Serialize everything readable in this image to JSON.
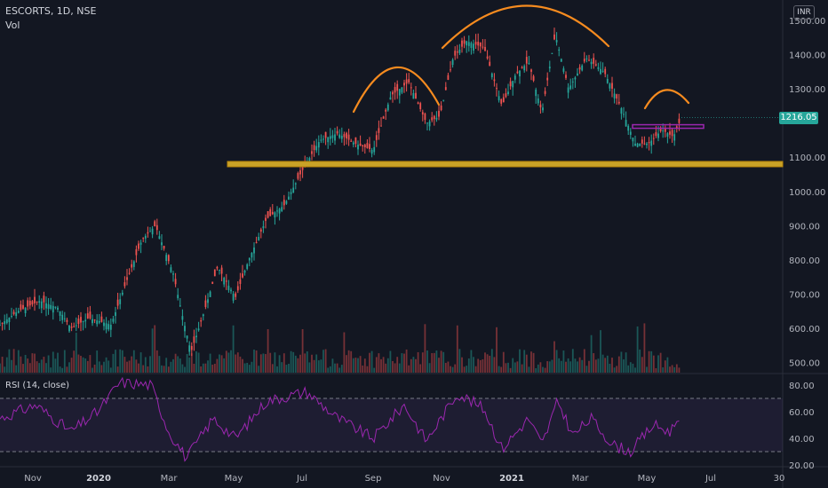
{
  "header": {
    "symbol": "ESCORTS, 1D, NSE",
    "volume_label": "Vol",
    "currency": "INR",
    "last_price": "1216.05",
    "rsi_label": "RSI (14, close)"
  },
  "colors": {
    "background": "#131722",
    "up": "#26a69a",
    "down": "#ef5350",
    "support": "#c9a227",
    "pattern": "#f68b1f",
    "neckline": "#9c27b0",
    "rsi": "#9c27b0",
    "grid": "#1e222d",
    "text": "#b2b5be"
  },
  "chart_data": [
    {
      "type": "candlestick",
      "title": "ESCORTS, 1D, NSE",
      "x_ticks": [
        "Nov",
        "2020",
        "Mar",
        "May",
        "Jul",
        "Sep",
        "Nov",
        "2021",
        "Mar",
        "May",
        "Jul",
        "30"
      ],
      "y_ticks": [
        "500.00",
        "600.00",
        "700.00",
        "800.00",
        "900.00",
        "1000.00",
        "1100.00",
        "1200.00",
        "1300.00",
        "1400.00",
        "1500.00"
      ],
      "ylim": [
        470,
        1560
      ],
      "close_path": [
        {
          "t": 0,
          "v": 610
        },
        {
          "t": 20,
          "v": 650
        },
        {
          "t": 45,
          "v": 680
        },
        {
          "t": 65,
          "v": 660
        },
        {
          "t": 80,
          "v": 600
        },
        {
          "t": 100,
          "v": 630
        },
        {
          "t": 125,
          "v": 610
        },
        {
          "t": 140,
          "v": 720
        },
        {
          "t": 160,
          "v": 860
        },
        {
          "t": 175,
          "v": 900
        },
        {
          "t": 195,
          "v": 760
        },
        {
          "t": 205,
          "v": 640
        },
        {
          "t": 215,
          "v": 530
        },
        {
          "t": 230,
          "v": 650
        },
        {
          "t": 245,
          "v": 780
        },
        {
          "t": 265,
          "v": 690
        },
        {
          "t": 280,
          "v": 800
        },
        {
          "t": 300,
          "v": 920
        },
        {
          "t": 320,
          "v": 960
        },
        {
          "t": 340,
          "v": 1060
        },
        {
          "t": 360,
          "v": 1150
        },
        {
          "t": 380,
          "v": 1170
        },
        {
          "t": 400,
          "v": 1140
        },
        {
          "t": 420,
          "v": 1120
        },
        {
          "t": 440,
          "v": 1280
        },
        {
          "t": 460,
          "v": 1320
        },
        {
          "t": 480,
          "v": 1200
        },
        {
          "t": 495,
          "v": 1220
        },
        {
          "t": 510,
          "v": 1390
        },
        {
          "t": 525,
          "v": 1440
        },
        {
          "t": 545,
          "v": 1420
        },
        {
          "t": 565,
          "v": 1250
        },
        {
          "t": 580,
          "v": 1340
        },
        {
          "t": 595,
          "v": 1380
        },
        {
          "t": 610,
          "v": 1230
        },
        {
          "t": 625,
          "v": 1460
        },
        {
          "t": 640,
          "v": 1300
        },
        {
          "t": 660,
          "v": 1390
        },
        {
          "t": 680,
          "v": 1350
        },
        {
          "t": 700,
          "v": 1240
        },
        {
          "t": 715,
          "v": 1140
        },
        {
          "t": 730,
          "v": 1140
        },
        {
          "t": 745,
          "v": 1180
        },
        {
          "t": 758,
          "v": 1160
        },
        {
          "t": 767,
          "v": 1216
        }
      ],
      "annotations": {
        "support_level": 1080,
        "neckline_level": 1190,
        "last_price": "1216.05"
      }
    },
    {
      "type": "line",
      "title": "RSI (14, close)",
      "y_ticks": [
        "20.00",
        "40.00",
        "60.00",
        "80.00"
      ],
      "ylim": [
        20,
        88
      ],
      "bands": [
        30,
        70
      ],
      "rsi_path": [
        {
          "t": 0,
          "v": 55
        },
        {
          "t": 40,
          "v": 65
        },
        {
          "t": 80,
          "v": 45
        },
        {
          "t": 110,
          "v": 60
        },
        {
          "t": 135,
          "v": 82
        },
        {
          "t": 170,
          "v": 80
        },
        {
          "t": 190,
          "v": 45
        },
        {
          "t": 210,
          "v": 25
        },
        {
          "t": 240,
          "v": 55
        },
        {
          "t": 265,
          "v": 40
        },
        {
          "t": 300,
          "v": 68
        },
        {
          "t": 345,
          "v": 75
        },
        {
          "t": 380,
          "v": 55
        },
        {
          "t": 420,
          "v": 40
        },
        {
          "t": 455,
          "v": 65
        },
        {
          "t": 480,
          "v": 38
        },
        {
          "t": 515,
          "v": 74
        },
        {
          "t": 545,
          "v": 62
        },
        {
          "t": 565,
          "v": 32
        },
        {
          "t": 595,
          "v": 55
        },
        {
          "t": 610,
          "v": 35
        },
        {
          "t": 628,
          "v": 68
        },
        {
          "t": 645,
          "v": 42
        },
        {
          "t": 665,
          "v": 55
        },
        {
          "t": 690,
          "v": 35
        },
        {
          "t": 710,
          "v": 30
        },
        {
          "t": 735,
          "v": 50
        },
        {
          "t": 755,
          "v": 45
        },
        {
          "t": 767,
          "v": 61
        }
      ]
    }
  ]
}
